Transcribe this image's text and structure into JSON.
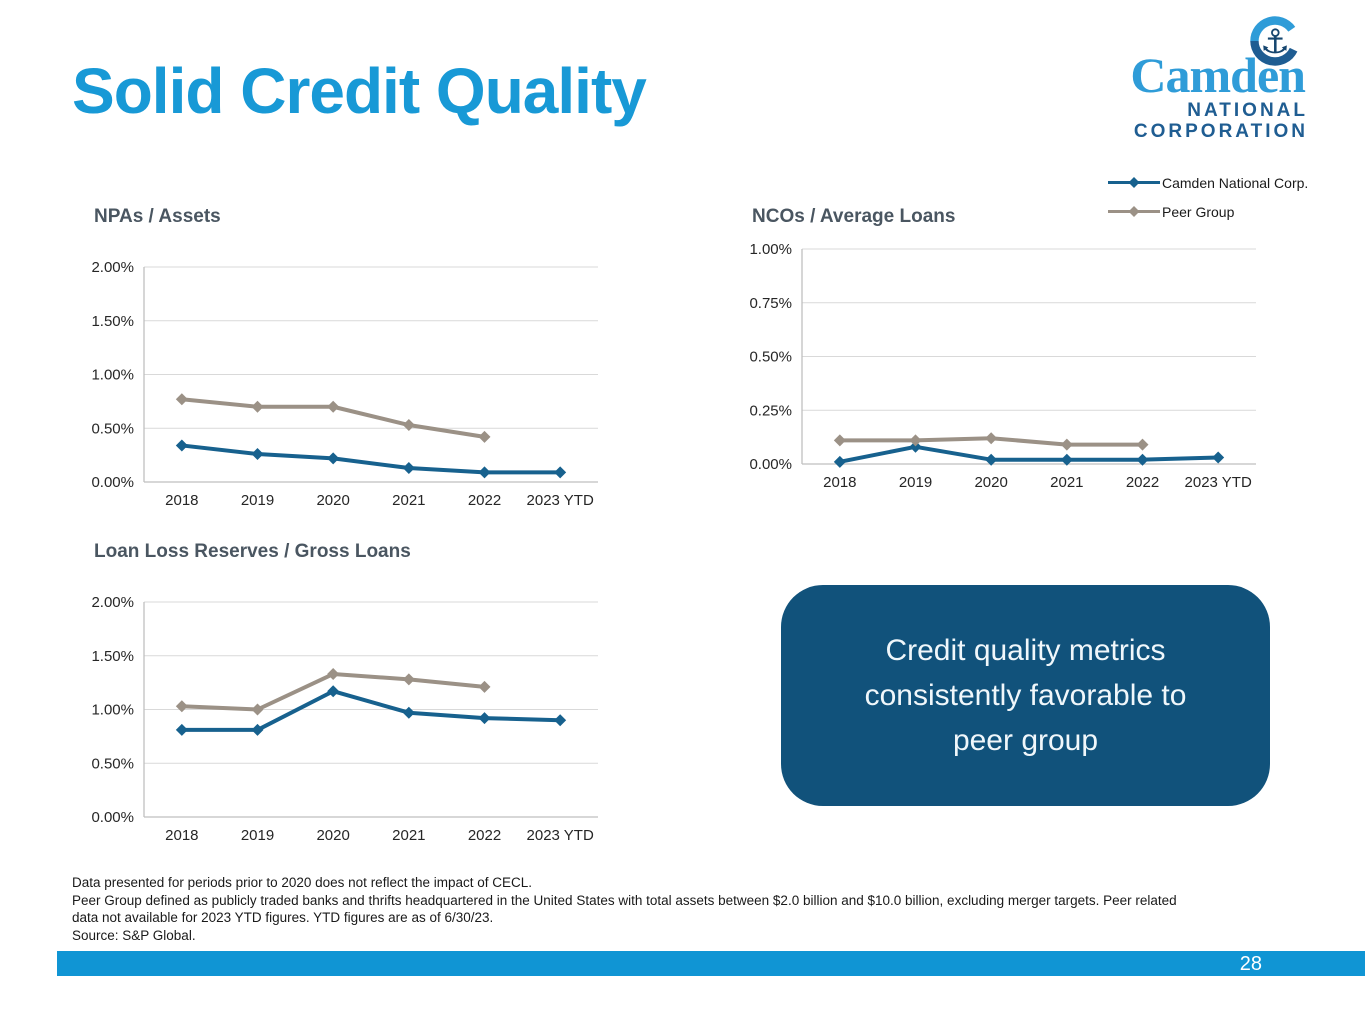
{
  "title": "Solid Credit Quality",
  "colors": {
    "title_blue": "#1899D6",
    "logo_light_blue": "#2F9CD8",
    "logo_dark_blue": "#1F5D92",
    "anchor_navy": "#16466F",
    "chart_title": "#4A5661",
    "callout_bg": "#11527B",
    "footer_bar": "#1095D4",
    "camden_line": "#17618E",
    "peer_line": "#9B9186"
  },
  "logo": {
    "name": "Camden",
    "line2": "NATIONAL",
    "line3": "CORPORATION"
  },
  "legend": {
    "items": [
      {
        "label": "Camden National Corp.",
        "color": "#17618E"
      },
      {
        "label": "Peer Group",
        "color": "#9B9186"
      }
    ]
  },
  "chart_data": [
    {
      "type": "line",
      "title": "NPAs / Assets",
      "categories": [
        "2018",
        "2019",
        "2020",
        "2021",
        "2022",
        "2023 YTD"
      ],
      "series": [
        {
          "name": "Camden National Corp.",
          "color": "#17618E",
          "values": [
            0.34,
            0.26,
            0.22,
            0.13,
            0.09,
            0.09
          ]
        },
        {
          "name": "Peer Group",
          "color": "#9B9186",
          "values": [
            0.77,
            0.7,
            0.7,
            0.53,
            0.42,
            null
          ]
        }
      ],
      "xlabel": "",
      "ylabel": "",
      "ylim": [
        0,
        2.0
      ],
      "ytick_step": 0.5,
      "grid": true,
      "legend_position": "top-right-of-slide"
    },
    {
      "type": "line",
      "title": "NCOs / Average Loans",
      "categories": [
        "2018",
        "2019",
        "2020",
        "2021",
        "2022",
        "2023 YTD"
      ],
      "series": [
        {
          "name": "Camden National Corp.",
          "color": "#17618E",
          "values": [
            0.01,
            0.08,
            0.02,
            0.02,
            0.02,
            0.03
          ]
        },
        {
          "name": "Peer Group",
          "color": "#9B9186",
          "values": [
            0.11,
            0.11,
            0.12,
            0.09,
            0.09,
            null
          ]
        }
      ],
      "xlabel": "",
      "ylabel": "",
      "ylim": [
        0,
        1.0
      ],
      "ytick_step": 0.25,
      "grid": true,
      "legend_position": "top-right-of-slide"
    },
    {
      "type": "line",
      "title": "Loan Loss Reserves / Gross Loans",
      "categories": [
        "2018",
        "2019",
        "2020",
        "2021",
        "2022",
        "2023 YTD"
      ],
      "series": [
        {
          "name": "Camden National Corp.",
          "color": "#17618E",
          "values": [
            0.81,
            0.81,
            1.17,
            0.97,
            0.92,
            0.9
          ]
        },
        {
          "name": "Peer Group",
          "color": "#9B9186",
          "values": [
            1.03,
            1.0,
            1.33,
            1.28,
            1.21,
            null
          ]
        }
      ],
      "xlabel": "",
      "ylabel": "",
      "ylim": [
        0,
        2.0
      ],
      "ytick_step": 0.5,
      "grid": true,
      "legend_position": "top-right-of-slide"
    }
  ],
  "callout": {
    "lines": [
      "Credit quality metrics",
      "consistently favorable to",
      "peer group"
    ]
  },
  "footnotes": {
    "lines": [
      "Data presented for periods prior to 2020 does not reflect the impact of CECL.",
      "Peer Group defined as publicly traded banks and thrifts headquartered in the United States with total assets between $2.0 billion and $10.0 billion, excluding merger targets. Peer related",
      "data not available for 2023 YTD figures. YTD figures are as of 6/30/23.",
      "Source: S&P Global."
    ]
  },
  "footer": {
    "page_number": "28"
  }
}
